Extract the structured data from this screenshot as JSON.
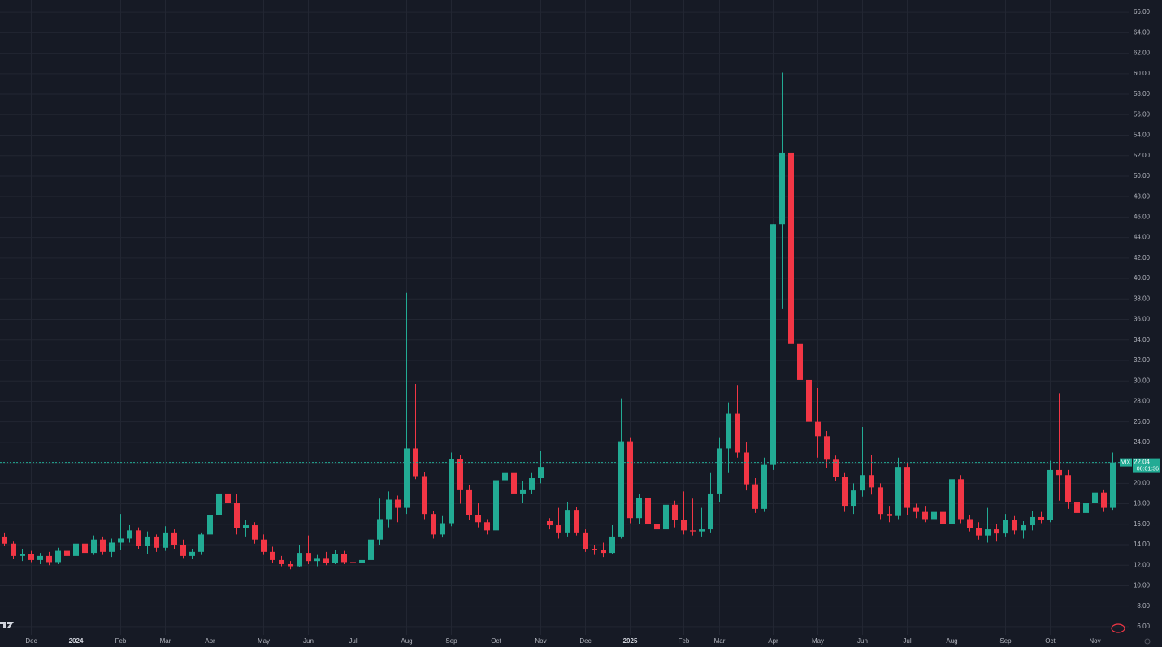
{
  "chart_data": {
    "type": "candlestick",
    "up_color": "#22ab94",
    "down_color": "#f23645",
    "grid": true,
    "ylim": [
      5.2,
      67.2
    ],
    "yticks": [
      {
        "value": 6,
        "label": "6.00"
      },
      {
        "value": 8,
        "label": "8.00"
      },
      {
        "value": 10,
        "label": "10.00"
      },
      {
        "value": 12,
        "label": "12.00"
      },
      {
        "value": 14,
        "label": "14.00"
      },
      {
        "value": 16,
        "label": "16.00"
      },
      {
        "value": 18,
        "label": "18.00"
      },
      {
        "value": 20,
        "label": "20.00"
      },
      {
        "value": 22,
        "label": "22.00"
      },
      {
        "value": 24,
        "label": "24.00"
      },
      {
        "value": 26,
        "label": "26.00"
      },
      {
        "value": 28,
        "label": "28.00"
      },
      {
        "value": 30,
        "label": "30.00"
      },
      {
        "value": 32,
        "label": "32.00"
      },
      {
        "value": 34,
        "label": "34.00"
      },
      {
        "value": 36,
        "label": "36.00"
      },
      {
        "value": 38,
        "label": "38.00"
      },
      {
        "value": 40,
        "label": "40.00"
      },
      {
        "value": 42,
        "label": "42.00"
      },
      {
        "value": 44,
        "label": "44.00"
      },
      {
        "value": 46,
        "label": "46.00"
      },
      {
        "value": 48,
        "label": "48.00"
      },
      {
        "value": 50,
        "label": "50.00"
      },
      {
        "value": 52,
        "label": "52.00"
      },
      {
        "value": 54,
        "label": "54.00"
      },
      {
        "value": 56,
        "label": "56.00"
      },
      {
        "value": 58,
        "label": "58.00"
      },
      {
        "value": 60,
        "label": "60.00"
      },
      {
        "value": 62,
        "label": "62.00"
      },
      {
        "value": 64,
        "label": "64.00"
      },
      {
        "value": 66,
        "label": "66.00"
      }
    ],
    "categories": [
      null,
      null,
      null,
      "Dec",
      null,
      null,
      null,
      null,
      "2024",
      null,
      null,
      null,
      null,
      "Feb",
      null,
      null,
      null,
      null,
      "Mar",
      null,
      null,
      null,
      null,
      "Apr",
      null,
      null,
      null,
      null,
      null,
      "May",
      null,
      null,
      null,
      null,
      "Jun",
      null,
      null,
      null,
      null,
      "Jul",
      null,
      null,
      null,
      null,
      null,
      "Aug",
      null,
      null,
      null,
      null,
      "Sep",
      null,
      null,
      null,
      null,
      "Oct",
      null,
      null,
      null,
      null,
      "Nov",
      null,
      null,
      null,
      null,
      "Dec",
      null,
      null,
      null,
      null,
      "2025",
      null,
      null,
      null,
      null,
      null,
      "Feb",
      null,
      null,
      null,
      "Mar",
      null,
      null,
      null,
      null,
      null,
      "Apr",
      null,
      null,
      null,
      null,
      "May",
      null,
      null,
      null,
      null,
      "Jun",
      null,
      null,
      null,
      null,
      "Jul",
      null,
      null,
      null,
      null,
      "Aug",
      null,
      null,
      null,
      null,
      null,
      "Sep",
      null,
      null,
      null,
      null,
      "Oct",
      null,
      null,
      null,
      null,
      "Nov",
      null,
      null
    ],
    "ohlc": [
      [
        14.8,
        15.2,
        13.9,
        14.1
      ],
      [
        14.1,
        14.3,
        12.6,
        12.9
      ],
      [
        12.9,
        13.6,
        12.4,
        13.1
      ],
      [
        13.1,
        13.4,
        12.3,
        12.5
      ],
      [
        12.5,
        13.2,
        12.1,
        12.9
      ],
      [
        12.9,
        13.3,
        12.0,
        12.3
      ],
      [
        12.3,
        13.7,
        12.1,
        13.4
      ],
      [
        13.4,
        14.2,
        12.7,
        12.9
      ],
      [
        12.9,
        14.5,
        12.6,
        14.1
      ],
      [
        14.1,
        14.3,
        12.9,
        13.2
      ],
      [
        13.2,
        14.9,
        13.0,
        14.5
      ],
      [
        14.5,
        14.8,
        13.0,
        13.3
      ],
      [
        13.3,
        14.6,
        12.8,
        14.2
      ],
      [
        14.2,
        17.0,
        13.5,
        14.6
      ],
      [
        14.6,
        15.9,
        14.2,
        15.4
      ],
      [
        15.4,
        15.7,
        13.6,
        13.9
      ],
      [
        13.9,
        15.3,
        13.1,
        14.8
      ],
      [
        14.8,
        15.0,
        13.3,
        13.7
      ],
      [
        13.7,
        15.8,
        13.4,
        15.2
      ],
      [
        15.2,
        15.5,
        13.6,
        14.0
      ],
      [
        14.0,
        14.5,
        12.7,
        12.9
      ],
      [
        12.9,
        13.6,
        12.6,
        13.3
      ],
      [
        13.3,
        15.2,
        13.0,
        15.0
      ],
      [
        15.0,
        17.3,
        14.7,
        16.9
      ],
      [
        16.9,
        19.5,
        16.2,
        19.0
      ],
      [
        19.0,
        21.4,
        17.5,
        18.1
      ],
      [
        18.1,
        19.0,
        15.0,
        15.6
      ],
      [
        15.6,
        16.4,
        14.8,
        15.9
      ],
      [
        15.9,
        16.2,
        14.1,
        14.5
      ],
      [
        14.5,
        15.0,
        13.0,
        13.3
      ],
      [
        13.3,
        13.8,
        12.2,
        12.5
      ],
      [
        12.5,
        12.9,
        11.9,
        12.1
      ],
      [
        12.1,
        12.4,
        11.6,
        11.9
      ],
      [
        11.9,
        14.0,
        11.8,
        13.2
      ],
      [
        13.2,
        14.9,
        12.1,
        12.4
      ],
      [
        12.4,
        13.0,
        11.9,
        12.7
      ],
      [
        12.7,
        13.3,
        12.0,
        12.2
      ],
      [
        12.2,
        13.5,
        12.1,
        13.1
      ],
      [
        13.1,
        13.4,
        12.1,
        12.3
      ],
      [
        12.3,
        13.0,
        11.9,
        12.2
      ],
      [
        12.2,
        12.6,
        11.9,
        12.5
      ],
      [
        12.5,
        14.8,
        10.7,
        14.5
      ],
      [
        14.5,
        18.5,
        14.0,
        16.5
      ],
      [
        16.5,
        19.2,
        15.7,
        18.4
      ],
      [
        18.4,
        18.8,
        16.2,
        17.6
      ],
      [
        17.6,
        38.6,
        17.0,
        23.4
      ],
      [
        23.4,
        29.7,
        20.4,
        20.7
      ],
      [
        20.7,
        21.1,
        16.5,
        17.0
      ],
      [
        17.0,
        17.3,
        14.6,
        15.0
      ],
      [
        15.0,
        16.8,
        14.7,
        16.1
      ],
      [
        16.1,
        23.0,
        15.8,
        22.4
      ],
      [
        22.4,
        22.8,
        18.0,
        19.4
      ],
      [
        19.4,
        19.8,
        16.4,
        16.9
      ],
      [
        16.9,
        18.1,
        15.7,
        16.2
      ],
      [
        16.2,
        16.5,
        15.0,
        15.4
      ],
      [
        15.4,
        21.0,
        15.1,
        20.3
      ],
      [
        20.3,
        22.9,
        19.5,
        21.0
      ],
      [
        21.0,
        21.5,
        18.3,
        19.0
      ],
      [
        19.0,
        20.2,
        18.1,
        19.4
      ],
      [
        19.4,
        21.0,
        19.0,
        20.5
      ],
      [
        20.5,
        23.2,
        20.0,
        21.6
      ],
      [
        16.3,
        16.6,
        15.5,
        15.9
      ],
      [
        15.9,
        17.6,
        14.6,
        15.2
      ],
      [
        15.2,
        18.2,
        14.8,
        17.4
      ],
      [
        17.4,
        17.7,
        14.9,
        15.2
      ],
      [
        15.2,
        15.5,
        13.3,
        13.6
      ],
      [
        13.6,
        14.0,
        13.0,
        13.5
      ],
      [
        13.5,
        14.2,
        12.8,
        13.2
      ],
      [
        13.2,
        15.9,
        13.1,
        14.8
      ],
      [
        14.8,
        28.3,
        14.6,
        24.1
      ],
      [
        24.1,
        24.5,
        16.1,
        16.6
      ],
      [
        16.6,
        19.0,
        16.0,
        18.6
      ],
      [
        18.6,
        21.1,
        15.8,
        16.0
      ],
      [
        16.0,
        17.5,
        15.1,
        15.5
      ],
      [
        15.5,
        21.8,
        14.9,
        17.9
      ],
      [
        17.9,
        18.3,
        15.7,
        16.4
      ],
      [
        16.4,
        19.2,
        15.0,
        15.4
      ],
      [
        15.4,
        18.5,
        14.9,
        15.3
      ],
      [
        15.3,
        17.6,
        14.8,
        15.5
      ],
      [
        15.5,
        21.0,
        15.2,
        19.0
      ],
      [
        19.0,
        24.5,
        18.2,
        23.4
      ],
      [
        23.4,
        27.9,
        21.0,
        26.8
      ],
      [
        26.8,
        29.6,
        22.5,
        23.0
      ],
      [
        23.0,
        24.0,
        19.3,
        19.9
      ],
      [
        19.9,
        20.5,
        17.1,
        17.5
      ],
      [
        17.5,
        22.5,
        17.2,
        21.8
      ],
      [
        21.8,
        45.3,
        21.3,
        45.3
      ],
      [
        45.3,
        60.1,
        37.0,
        52.3
      ],
      [
        52.3,
        57.5,
        30.0,
        33.6
      ],
      [
        33.6,
        40.7,
        29.0,
        30.1
      ],
      [
        30.1,
        35.6,
        25.4,
        26.0
      ],
      [
        26.0,
        29.3,
        22.5,
        24.6
      ],
      [
        24.6,
        25.1,
        21.5,
        22.3
      ],
      [
        22.3,
        22.7,
        20.2,
        20.6
      ],
      [
        20.6,
        21.0,
        17.2,
        17.8
      ],
      [
        17.8,
        20.0,
        17.0,
        19.3
      ],
      [
        19.3,
        25.5,
        18.7,
        20.8
      ],
      [
        20.8,
        22.8,
        18.9,
        19.6
      ],
      [
        19.6,
        20.0,
        16.5,
        17.0
      ],
      [
        17.0,
        17.8,
        16.2,
        16.8
      ],
      [
        16.8,
        22.5,
        16.5,
        21.6
      ],
      [
        21.6,
        22.0,
        16.9,
        17.6
      ],
      [
        17.6,
        18.0,
        16.6,
        17.2
      ],
      [
        17.2,
        17.8,
        16.2,
        16.5
      ],
      [
        16.5,
        17.8,
        16.0,
        17.2
      ],
      [
        17.2,
        17.6,
        15.8,
        16.0
      ],
      [
        16.0,
        21.9,
        15.5,
        20.4
      ],
      [
        20.4,
        20.8,
        16.1,
        16.5
      ],
      [
        16.5,
        16.9,
        15.3,
        15.6
      ],
      [
        15.6,
        16.2,
        14.5,
        14.9
      ],
      [
        14.9,
        17.6,
        14.2,
        15.5
      ],
      [
        15.5,
        16.0,
        14.3,
        15.1
      ],
      [
        15.1,
        17.0,
        14.8,
        16.4
      ],
      [
        16.4,
        16.8,
        15.0,
        15.4
      ],
      [
        15.4,
        16.3,
        14.6,
        15.9
      ],
      [
        15.9,
        17.3,
        15.4,
        16.7
      ],
      [
        16.7,
        17.2,
        16.1,
        16.4
      ],
      [
        16.4,
        22.2,
        16.2,
        21.3
      ],
      [
        21.3,
        28.8,
        18.3,
        20.8
      ],
      [
        20.8,
        21.3,
        17.5,
        18.2
      ],
      [
        18.2,
        18.6,
        16.0,
        17.1
      ],
      [
        17.1,
        18.8,
        15.7,
        18.1
      ],
      [
        18.1,
        20.0,
        17.2,
        19.1
      ],
      [
        19.1,
        19.4,
        17.2,
        17.6
      ],
      [
        17.6,
        23.0,
        17.4,
        22.04
      ]
    ],
    "last_price": {
      "symbol": "VIX",
      "value": 22.04,
      "countdown": "06:01:36"
    }
  }
}
